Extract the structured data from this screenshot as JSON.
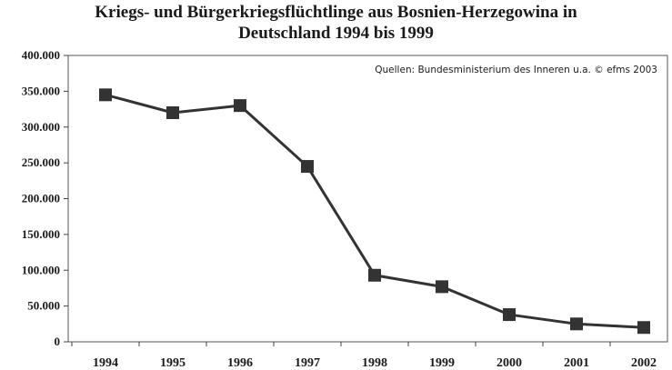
{
  "title_line1": "Kriegs- und Bürgerkriegsflüchtlinge aus Bosnien-Herzegowina in",
  "title_line2": "Deutschland 1994 bis 1999",
  "source_note": "Quellen: Bundesministerium des Inneren u.a.   © efms 2003",
  "colors": {
    "line": "#333333",
    "marker": "#333333",
    "axis": "#444444",
    "border": "#555555"
  },
  "chart_data": {
    "type": "line",
    "title": "Kriegs- und Bürgerkriegsflüchtlinge aus Bosnien-Herzegowina in Deutschland 1994 bis 1999",
    "categories": [
      "1994",
      "1995",
      "1996",
      "1997",
      "1998",
      "1999",
      "2000",
      "2001",
      "2002"
    ],
    "values": [
      345000,
      320000,
      330000,
      245000,
      93000,
      77000,
      38000,
      25000,
      20000
    ],
    "ylim": [
      0,
      400000
    ],
    "yticks": [
      0,
      50000,
      100000,
      150000,
      200000,
      250000,
      300000,
      350000,
      400000
    ],
    "ytick_labels": [
      "0",
      "50.000",
      "100.000",
      "150.000",
      "200.000",
      "250.000",
      "300.000",
      "350.000",
      "400.000"
    ],
    "grid": false,
    "legend": "none",
    "marker": "square"
  }
}
